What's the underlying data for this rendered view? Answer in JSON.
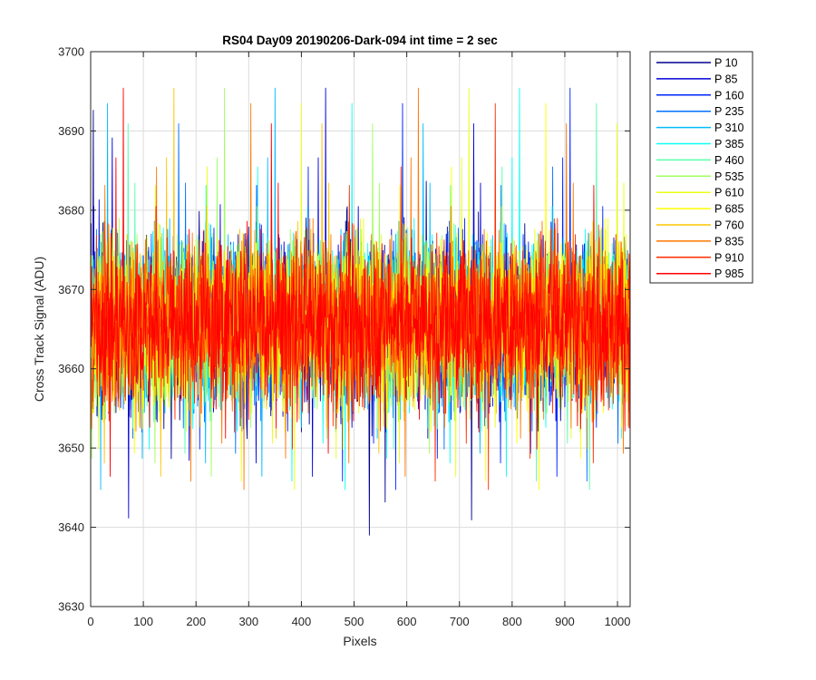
{
  "chart_data": {
    "type": "line",
    "title": "RS04 Day09 20190206-Dark-094 int time = 2 sec",
    "xlabel": "Pixels",
    "ylabel": "Cross Track Signal (ADU)",
    "xlim": [
      0,
      1024
    ],
    "ylim": [
      3630,
      3700
    ],
    "xticks": [
      0,
      100,
      200,
      300,
      400,
      500,
      600,
      700,
      800,
      900,
      1000
    ],
    "yticks": [
      3630,
      3640,
      3650,
      3660,
      3670,
      3680,
      3690,
      3700
    ],
    "grid": true,
    "legend_position": "outside-right",
    "x_points": 1024,
    "signal_center": 3666,
    "signal_spread_typical": [
      3655,
      3680
    ],
    "series": [
      {
        "name": "P 10",
        "color": "#00008F"
      },
      {
        "name": "P 85",
        "color": "#0000DA"
      },
      {
        "name": "P 160",
        "color": "#0026FF"
      },
      {
        "name": "P 235",
        "color": "#0071FF"
      },
      {
        "name": "P 310",
        "color": "#00BCFF"
      },
      {
        "name": "P 385",
        "color": "#09FFF6"
      },
      {
        "name": "P 460",
        "color": "#54FFAB"
      },
      {
        "name": "P 535",
        "color": "#9FFF60"
      },
      {
        "name": "P 610",
        "color": "#EAFF15"
      },
      {
        "name": "P 685",
        "color": "#FFFF00"
      },
      {
        "name": "P 760",
        "color": "#FFC300"
      },
      {
        "name": "P 835",
        "color": "#FF7800"
      },
      {
        "name": "P 910",
        "color": "#FF2D00"
      },
      {
        "name": "P 985",
        "color": "#FF0000"
      }
    ]
  }
}
